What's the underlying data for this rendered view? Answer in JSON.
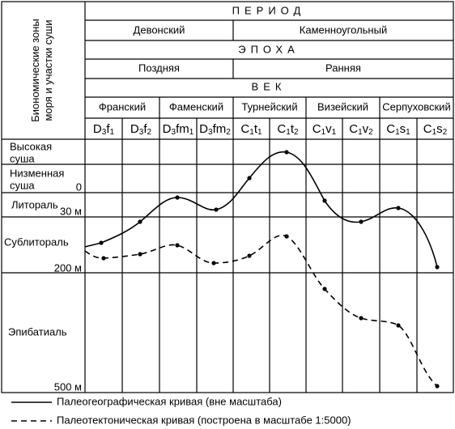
{
  "header": {
    "side_label": [
      "Биономические зоны",
      "моря и участки суши"
    ],
    "period_title": "ПЕРИОД",
    "periods": [
      "Девонский",
      "Каменноугольный"
    ],
    "epoch_title": "ЭПОХА",
    "epochs": [
      "Поздняя",
      "Ранняя"
    ],
    "age_title": "ВЕК",
    "ages": [
      "Франский",
      "Фаменский",
      "Турнейский",
      "Визейский",
      "Серпуховский"
    ],
    "stages": [
      [
        "D",
        "3",
        "f",
        "1"
      ],
      [
        "D",
        "3",
        "f",
        "2"
      ],
      [
        "D",
        "3",
        "fm",
        "1"
      ],
      [
        "D",
        "3",
        "fm",
        "2"
      ],
      [
        "C",
        "1",
        "t",
        "1"
      ],
      [
        "C",
        "1",
        "t",
        "2"
      ],
      [
        "C",
        "1",
        "v",
        "1"
      ],
      [
        "C",
        "1",
        "v",
        "2"
      ],
      [
        "C",
        "1",
        "s",
        "1"
      ],
      [
        "C",
        "1",
        "s",
        "2"
      ]
    ]
  },
  "zones": [
    [
      "Высокая",
      "суша"
    ],
    [
      "Низменная",
      "суша"
    ],
    [
      "Литораль"
    ],
    [
      "Сублитораль"
    ],
    [
      "Эпибатиаль"
    ]
  ],
  "depth_labels": [
    "0",
    "30 м",
    "200 м",
    "500 м"
  ],
  "legend": [
    "Палеогеографическая кривая (вне масштаба)",
    "Палеотектоническая кривая (построена в масштабе 1:5000)"
  ]
}
